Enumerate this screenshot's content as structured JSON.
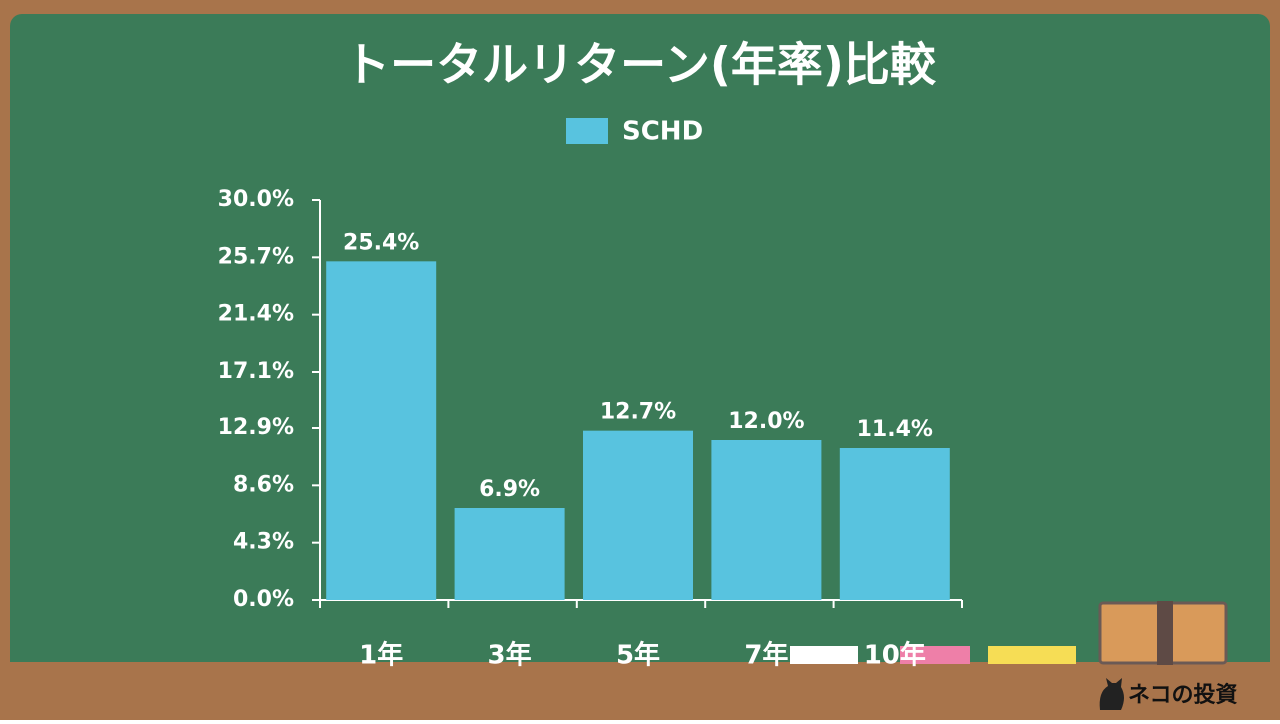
{
  "chart_data": {
    "type": "bar",
    "title": "トータルリターン(年率)比較",
    "categories": [
      "1年",
      "3年",
      "5年",
      "7年",
      "10年"
    ],
    "series": [
      {
        "name": "SCHD",
        "color": "#58c3df",
        "values": [
          25.4,
          6.9,
          12.7,
          12.0,
          11.4
        ],
        "value_labels": [
          "25.4%",
          "6.9%",
          "12.7%",
          "12.0%",
          "11.4%"
        ]
      }
    ],
    "ylim": [
      0,
      30
    ],
    "yticks": [
      {
        "value": 0,
        "label": "0.0%"
      },
      {
        "value": 4.3,
        "label": "4.3%"
      },
      {
        "value": 8.6,
        "label": "8.6%"
      },
      {
        "value": 12.9,
        "label": "12.9%"
      },
      {
        "value": 17.1,
        "label": "17.1%"
      },
      {
        "value": 21.4,
        "label": "21.4%"
      },
      {
        "value": 25.7,
        "label": "25.7%"
      },
      {
        "value": 30,
        "label": "30.0%"
      }
    ],
    "legend": "top",
    "watermark": "ネコの投資"
  }
}
